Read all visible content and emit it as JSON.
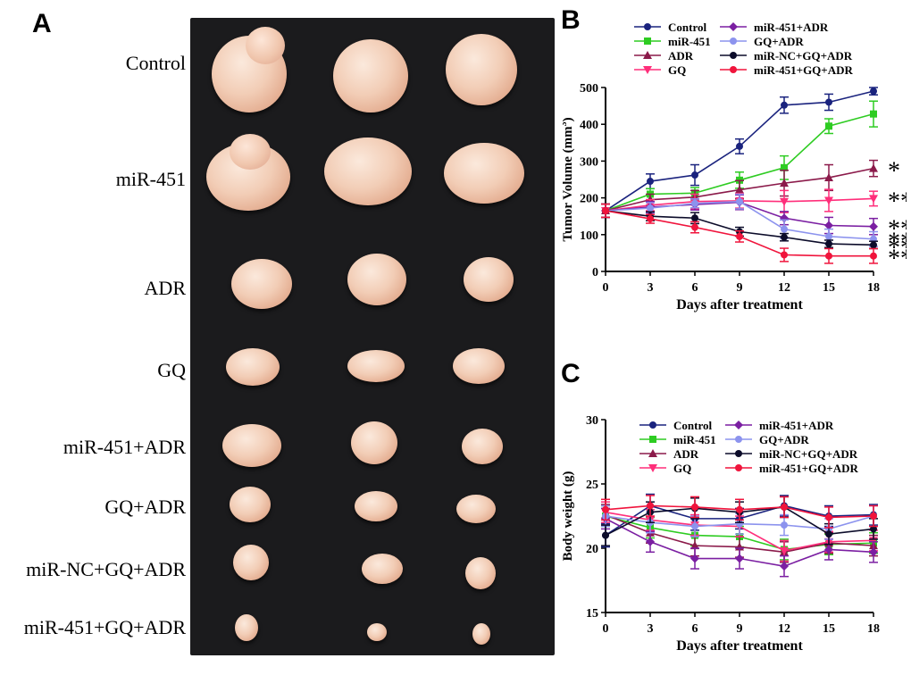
{
  "panels": {
    "a": "A",
    "b": "B",
    "c": "C"
  },
  "panel_a": {
    "rows": [
      {
        "label": "Control"
      },
      {
        "label": "miR-451"
      },
      {
        "label": "ADR"
      },
      {
        "label": "GQ"
      },
      {
        "label": "miR-451+ADR"
      },
      {
        "label": "GQ+ADR"
      },
      {
        "label": "miR-NC+GQ+ADR"
      },
      {
        "label": "miR-451+GQ+ADR"
      }
    ]
  },
  "chart_data": [
    {
      "type": "line",
      "panel": "B",
      "xlabel": "Days after treatment",
      "ylabel": "Tumor Volume (mm",
      "ylabel_sup": "3",
      "ylabel_end": ")",
      "x": [
        0,
        3,
        6,
        9,
        12,
        15,
        18
      ],
      "xlim": [
        0,
        18
      ],
      "ylim": [
        0,
        500
      ],
      "yticks": [
        0,
        100,
        200,
        300,
        400,
        500
      ],
      "xticks": [
        0,
        3,
        6,
        9,
        12,
        15,
        18
      ],
      "legend_position": "top",
      "series": [
        {
          "name": "Control",
          "color": "#1a237e",
          "marker": "circle",
          "values": [
            165,
            245,
            262,
            340,
            452,
            460,
            490
          ],
          "errors": [
            18,
            20,
            28,
            20,
            22,
            22,
            10
          ],
          "significance": ""
        },
        {
          "name": "miR-451",
          "color": "#2ecc22",
          "marker": "square",
          "values": [
            165,
            210,
            213,
            248,
            282,
            395,
            428
          ],
          "errors": [
            18,
            15,
            15,
            22,
            32,
            20,
            35
          ],
          "significance": ""
        },
        {
          "name": "ADR",
          "color": "#8b1a4a",
          "marker": "triangle",
          "values": [
            165,
            195,
            202,
            222,
            240,
            255,
            280
          ],
          "errors": [
            18,
            15,
            18,
            25,
            35,
            35,
            22
          ],
          "significance": "*"
        },
        {
          "name": "GQ",
          "color": "#ff2e7a",
          "marker": "triangle-down",
          "values": [
            165,
            180,
            190,
            192,
            190,
            193,
            198
          ],
          "errors": [
            18,
            15,
            20,
            20,
            30,
            30,
            20
          ],
          "significance": "**"
        },
        {
          "name": "miR-451+ADR",
          "color": "#7b1fa2",
          "marker": "diamond",
          "values": [
            165,
            175,
            182,
            188,
            145,
            125,
            122
          ],
          "errors": [
            18,
            15,
            15,
            20,
            18,
            22,
            22
          ],
          "significance": "***"
        },
        {
          "name": "GQ+ADR",
          "color": "#8c93ee",
          "marker": "circle",
          "values": [
            165,
            172,
            185,
            190,
            115,
            95,
            88
          ],
          "errors": [
            18,
            15,
            12,
            20,
            25,
            20,
            20
          ],
          "significance": "***"
        },
        {
          "name": "miR-NC+GQ+ADR",
          "color": "#0c0c2a",
          "marker": "circle",
          "values": [
            165,
            150,
            145,
            108,
            93,
            75,
            72
          ],
          "errors": [
            18,
            12,
            15,
            12,
            10,
            10,
            10
          ],
          "significance": "***"
        },
        {
          "name": "miR-451+GQ+ADR",
          "color": "#f0143c",
          "marker": "circle",
          "values": [
            165,
            143,
            120,
            95,
            45,
            42,
            42
          ],
          "errors": [
            18,
            12,
            15,
            15,
            18,
            20,
            20
          ],
          "significance": "***"
        }
      ]
    },
    {
      "type": "line",
      "panel": "C",
      "xlabel": "Days after treatment",
      "ylabel": "Body weight (g)",
      "x": [
        0,
        3,
        6,
        9,
        12,
        15,
        18
      ],
      "xlim": [
        0,
        18
      ],
      "ylim": [
        15,
        30
      ],
      "yticks": [
        15,
        20,
        25,
        30
      ],
      "xticks": [
        0,
        3,
        6,
        9,
        12,
        15,
        18
      ],
      "legend_position": "top",
      "series": [
        {
          "name": "Control",
          "color": "#1a237e",
          "marker": "circle",
          "values": [
            21.0,
            23.3,
            22.3,
            22.3,
            23.3,
            22.5,
            22.6
          ],
          "errors": [
            0.9,
            0.9,
            0.9,
            0.8,
            0.8,
            0.8,
            0.8
          ]
        },
        {
          "name": "miR-451",
          "color": "#2ecc22",
          "marker": "square",
          "values": [
            22.5,
            21.6,
            21.0,
            20.9,
            19.9,
            20.3,
            20.4
          ],
          "errors": [
            0.8,
            0.8,
            0.8,
            0.8,
            0.8,
            0.8,
            0.8
          ]
        },
        {
          "name": "ADR",
          "color": "#8b1a4a",
          "marker": "triangle",
          "values": [
            22.6,
            21.2,
            20.2,
            20.1,
            19.7,
            20.4,
            20.2
          ],
          "errors": [
            0.8,
            0.8,
            0.8,
            0.8,
            0.8,
            0.8,
            0.8
          ]
        },
        {
          "name": "GQ",
          "color": "#ff2e7a",
          "marker": "triangle-down",
          "values": [
            22.8,
            22.2,
            21.8,
            21.7,
            19.8,
            20.5,
            20.6
          ],
          "errors": [
            0.8,
            0.8,
            0.8,
            0.8,
            0.8,
            0.8,
            0.8
          ]
        },
        {
          "name": "miR-451+ADR",
          "color": "#7b1fa2",
          "marker": "diamond",
          "values": [
            22.3,
            20.5,
            19.2,
            19.2,
            18.6,
            19.9,
            19.7
          ],
          "errors": [
            0.8,
            0.8,
            0.8,
            0.8,
            0.8,
            0.8,
            0.8
          ]
        },
        {
          "name": "GQ+ADR",
          "color": "#8c93ee",
          "marker": "circle",
          "values": [
            22.5,
            22.0,
            21.7,
            21.9,
            21.8,
            21.5,
            22.5
          ],
          "errors": [
            0.8,
            0.8,
            0.8,
            0.8,
            0.8,
            0.8,
            0.8
          ]
        },
        {
          "name": "miR-NC+GQ+ADR",
          "color": "#0c0c2a",
          "marker": "circle",
          "values": [
            21.0,
            22.8,
            23.1,
            22.8,
            23.2,
            21.1,
            21.5
          ],
          "errors": [
            0.8,
            0.8,
            0.8,
            0.8,
            0.8,
            0.8,
            0.8
          ]
        },
        {
          "name": "miR-451+GQ+ADR",
          "color": "#f0143c",
          "marker": "circle",
          "values": [
            23.0,
            23.3,
            23.2,
            23.0,
            23.2,
            22.4,
            22.5
          ],
          "errors": [
            0.8,
            0.8,
            0.8,
            0.8,
            0.8,
            0.8,
            0.8
          ]
        }
      ]
    }
  ]
}
